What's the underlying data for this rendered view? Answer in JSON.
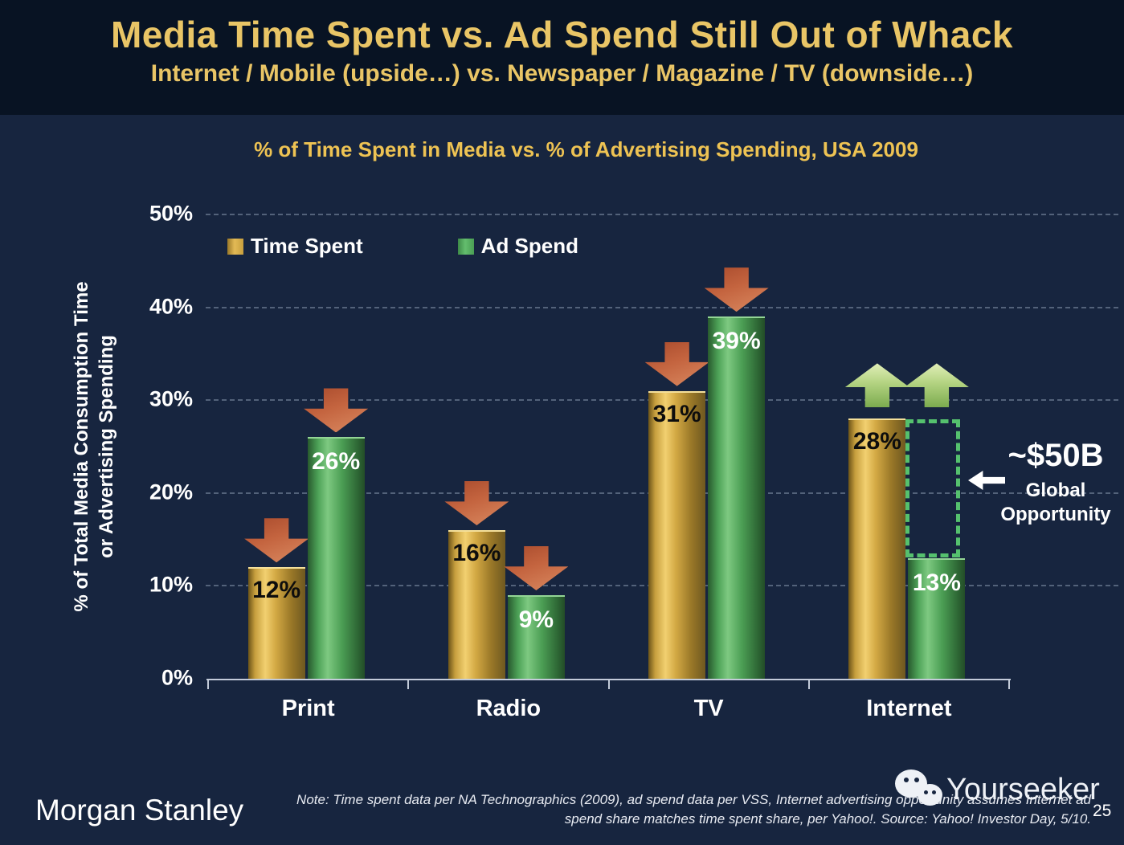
{
  "slide": {
    "title": "Media Time Spent vs. Ad Spend Still Out of Whack",
    "subtitle": "Internet / Mobile (upside…) vs. Newspaper / Magazine / TV (downside…)"
  },
  "chart_data": {
    "type": "bar",
    "title": "% of Time Spent in Media vs. % of Advertising Spending, USA 2009",
    "ylabel_line1": "% of Total Media Consumption Time",
    "ylabel_line2": "or Advertising Spending",
    "categories": [
      "Print",
      "Radio",
      "TV",
      "Internet"
    ],
    "series": [
      {
        "name": "Time Spent",
        "style": "gold",
        "color": "#d2a440",
        "values": [
          12,
          16,
          31,
          28
        ]
      },
      {
        "name": "Ad Spend",
        "style": "green",
        "color": "#58b865",
        "values": [
          26,
          9,
          39,
          13
        ]
      }
    ],
    "value_label_suffix": "%",
    "y_ticks": [
      "0%",
      "10%",
      "20%",
      "30%",
      "40%",
      "50%"
    ],
    "ylim": [
      0,
      50
    ],
    "grid": "horizontal-dashed",
    "legend_position": "top-left-inside",
    "arrows": [
      "down",
      "down",
      "down",
      "up"
    ],
    "arrow_colors": {
      "down": "#c4643f",
      "up": "#a8cc73"
    },
    "annotation": {
      "category": "Internet",
      "value_text": "~$50B",
      "label_line1": "Global",
      "label_line2": "Opportunity",
      "arrow_direction": "left",
      "box_style": "green-dotted"
    }
  },
  "footer": {
    "logo": "Morgan Stanley",
    "note_line1": "Note: Time spent data per NA Technographics (2009), ad spend data per VSS, Internet advertising opportunity assumes Internet ad",
    "note_line2": "spend share matches time spent share, per Yahoo!. Source: Yahoo! Investor Day, 5/10.",
    "watermark": "Yourseeker",
    "page_number": "25"
  },
  "colors": {
    "background": "#17253f",
    "header_background": "#081323",
    "title_gold": "#e9c566",
    "chart_title_gold": "#eec353",
    "bar_gold": "#d2a440",
    "bar_green": "#58b865",
    "down_arrow": "#c4643f",
    "up_arrow": "#a8cc73",
    "dotted_box_green": "#55c16e",
    "text_white": "#ffffff"
  }
}
